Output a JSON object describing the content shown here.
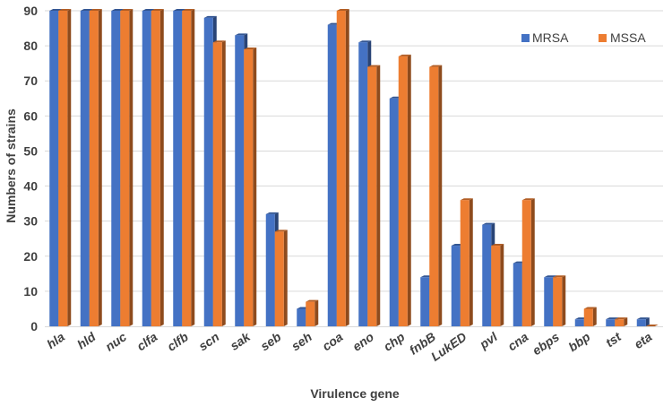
{
  "chart_data": {
    "type": "bar",
    "title": "",
    "xlabel": "Virulence gene",
    "ylabel": "Numbers of  strains",
    "ylim": [
      0,
      90
    ],
    "yticks": [
      "0",
      "10",
      "20",
      "30",
      "40",
      "50",
      "60",
      "70",
      "80",
      "90"
    ],
    "grid": true,
    "legend_position": "top-right",
    "categories": [
      "hla",
      "hld",
      "nuc",
      "clfa",
      "clfb",
      "scn",
      "sak",
      "seb",
      "seh",
      "coa",
      "eno",
      "chp",
      "fnbB",
      "LukED",
      "pvl",
      "cna",
      "ebps",
      "bbp",
      "tst",
      "eta"
    ],
    "series": [
      {
        "name": "MRSA",
        "color": "#4472C4",
        "values": [
          90,
          90,
          90,
          90,
          90,
          88,
          83,
          32,
          5,
          86,
          81,
          65,
          14,
          23,
          29,
          18,
          14,
          2,
          2,
          2
        ]
      },
      {
        "name": "MSSA",
        "color": "#ED7D31",
        "values": [
          90,
          90,
          90,
          90,
          90,
          81,
          79,
          27,
          7,
          90,
          74,
          77,
          74,
          36,
          23,
          36,
          14,
          5,
          2,
          0
        ]
      }
    ]
  }
}
